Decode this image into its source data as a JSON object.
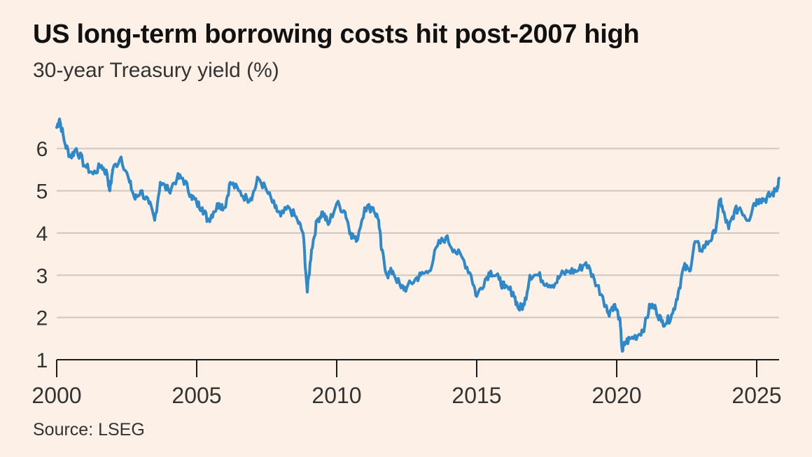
{
  "title": "US long-term borrowing costs hit post-2007 high",
  "subtitle": "30-year Treasury yield (%)",
  "source": "Source: LSEG",
  "colors": {
    "background": "#fdf0e6",
    "line": "#2f88c8",
    "grid": "#cfc7c0",
    "axis": "#1b1b1b"
  },
  "chart_data": {
    "type": "line",
    "title": "US long-term borrowing costs hit post-2007 high",
    "subtitle": "30-year Treasury yield (%)",
    "xlabel": "",
    "ylabel": "",
    "xlim": [
      2000,
      2025.8
    ],
    "ylim": [
      1,
      6.7
    ],
    "x_ticks": [
      2000,
      2005,
      2010,
      2015,
      2020,
      2025
    ],
    "y_ticks": [
      1,
      2,
      3,
      4,
      5,
      6
    ],
    "grid": "horizontal",
    "legend": "none",
    "series": [
      {
        "x": [
          2000.0,
          2000.1,
          2000.3,
          2000.5,
          2000.7,
          2001.0,
          2001.3,
          2001.6,
          2001.8,
          2001.9,
          2002.0,
          2002.3,
          2002.6,
          2002.8,
          2003.0,
          2003.3,
          2003.5,
          2003.7,
          2004.0,
          2004.3,
          2004.5,
          2004.8,
          2005.0,
          2005.2,
          2005.4,
          2005.6,
          2005.8,
          2006.0,
          2006.2,
          2006.5,
          2006.8,
          2007.0,
          2007.2,
          2007.5,
          2007.8,
          2008.0,
          2008.3,
          2008.6,
          2008.8,
          2008.95,
          2009.1,
          2009.3,
          2009.5,
          2009.7,
          2010.0,
          2010.3,
          2010.5,
          2010.7,
          2011.0,
          2011.3,
          2011.5,
          2011.6,
          2011.8,
          2012.0,
          2012.3,
          2012.5,
          2012.8,
          2013.0,
          2013.3,
          2013.6,
          2013.9,
          2014.2,
          2014.5,
          2014.8,
          2015.0,
          2015.3,
          2015.5,
          2015.8,
          2016.0,
          2016.3,
          2016.5,
          2016.7,
          2016.9,
          2017.2,
          2017.5,
          2017.8,
          2018.0,
          2018.3,
          2018.6,
          2018.9,
          2019.2,
          2019.5,
          2019.7,
          2019.9,
          2020.1,
          2020.2,
          2020.3,
          2020.5,
          2020.8,
          2021.0,
          2021.2,
          2021.4,
          2021.6,
          2021.8,
          2022.0,
          2022.2,
          2022.4,
          2022.6,
          2022.8,
          2023.0,
          2023.3,
          2023.5,
          2023.7,
          2023.8,
          2024.0,
          2024.2,
          2024.4,
          2024.7,
          2024.9,
          2025.1,
          2025.3,
          2025.5,
          2025.7,
          2025.8
        ],
        "values": [
          6.5,
          6.7,
          6.1,
          5.8,
          6.0,
          5.6,
          5.4,
          5.6,
          5.4,
          5.0,
          5.5,
          5.8,
          5.2,
          4.8,
          5.0,
          4.7,
          4.3,
          5.2,
          5.0,
          5.3,
          5.3,
          4.9,
          4.7,
          4.6,
          4.3,
          4.5,
          4.7,
          4.6,
          5.2,
          5.0,
          4.8,
          4.9,
          5.3,
          5.0,
          4.6,
          4.4,
          4.6,
          4.3,
          4.0,
          2.6,
          3.6,
          4.3,
          4.5,
          4.2,
          4.7,
          4.5,
          4.0,
          3.8,
          4.6,
          4.6,
          4.3,
          3.6,
          3.0,
          3.1,
          2.7,
          2.7,
          2.9,
          3.0,
          3.1,
          3.7,
          3.9,
          3.6,
          3.4,
          3.0,
          2.5,
          2.9,
          3.1,
          2.9,
          2.7,
          2.6,
          2.2,
          2.3,
          3.0,
          3.0,
          2.8,
          2.8,
          3.0,
          3.1,
          3.1,
          3.3,
          2.9,
          2.5,
          2.1,
          2.3,
          2.0,
          1.2,
          1.4,
          1.5,
          1.6,
          1.8,
          2.3,
          2.2,
          1.9,
          1.9,
          2.1,
          2.6,
          3.2,
          3.1,
          3.8,
          3.6,
          3.8,
          4.0,
          4.8,
          4.5,
          4.1,
          4.5,
          4.6,
          4.3,
          4.7,
          4.8,
          4.8,
          4.9,
          5.0,
          5.3
        ]
      }
    ]
  }
}
